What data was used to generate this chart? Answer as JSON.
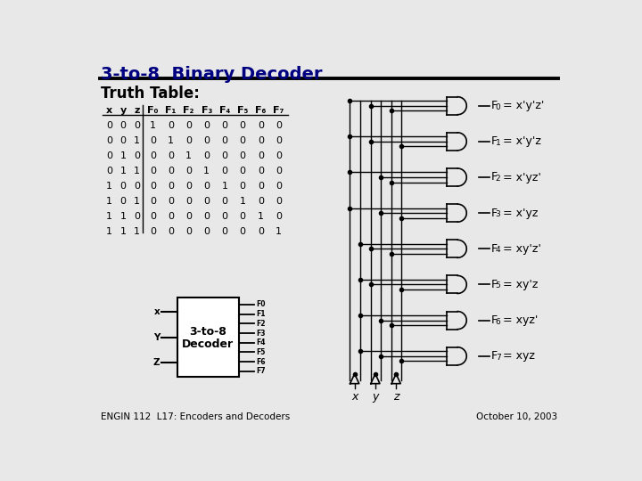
{
  "title": "3-to-8  Binary Decoder",
  "subtitle": "Truth Table:",
  "bg_color": "#e8e8e8",
  "table_headers": [
    "x",
    "y",
    "z",
    "F0",
    "F1",
    "F2",
    "F3",
    "F4",
    "F5",
    "F6",
    "F7"
  ],
  "table_data": [
    [
      0,
      0,
      0,
      1,
      0,
      0,
      0,
      0,
      0,
      0,
      0
    ],
    [
      0,
      0,
      1,
      0,
      1,
      0,
      0,
      0,
      0,
      0,
      0
    ],
    [
      0,
      1,
      0,
      0,
      0,
      1,
      0,
      0,
      0,
      0,
      0
    ],
    [
      0,
      1,
      1,
      0,
      0,
      0,
      1,
      0,
      0,
      0,
      0
    ],
    [
      1,
      0,
      0,
      0,
      0,
      0,
      0,
      1,
      0,
      0,
      0
    ],
    [
      1,
      0,
      1,
      0,
      0,
      0,
      0,
      0,
      1,
      0,
      0
    ],
    [
      1,
      1,
      0,
      0,
      0,
      0,
      0,
      0,
      0,
      1,
      0
    ],
    [
      1,
      1,
      1,
      0,
      0,
      0,
      0,
      0,
      0,
      0,
      1
    ]
  ],
  "gate_labels_raw": [
    [
      "F",
      "0",
      " = x'y'z'"
    ],
    [
      "F",
      "1",
      " = x'y'z"
    ],
    [
      "F",
      "2",
      " = x'yz'"
    ],
    [
      "F",
      "3",
      " = x'yz"
    ],
    [
      "F",
      "4",
      " = xy'z'"
    ],
    [
      "F",
      "5",
      " = xy'z"
    ],
    [
      "F",
      "6",
      " = xyz'"
    ],
    [
      "F",
      "7",
      " = xyz"
    ]
  ],
  "footer_left": "ENGIN 112  L17: Encoders and Decoders",
  "footer_right": "October 10, 2003",
  "title_color": "#000080"
}
